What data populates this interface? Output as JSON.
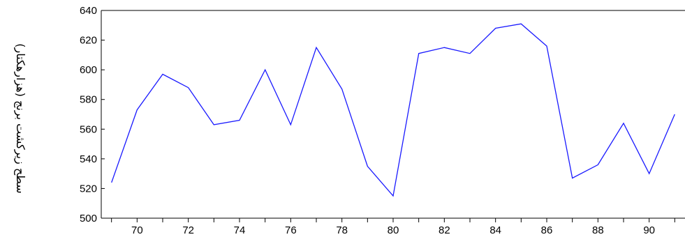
{
  "chart_data": {
    "type": "line",
    "title": "",
    "xlabel": "",
    "ylabel": "سطح زیرکشت برنج (هزارهکتار)",
    "x": [
      69,
      70,
      71,
      72,
      73,
      74,
      75,
      76,
      77,
      78,
      79,
      80,
      81,
      82,
      83,
      84,
      85,
      86,
      87,
      88,
      89,
      90,
      91
    ],
    "series": [
      {
        "values": [
          524,
          573,
          597,
          588,
          563,
          566,
          600,
          563,
          615,
          587,
          535,
          515,
          611,
          615,
          611,
          628,
          631,
          616,
          527,
          536,
          564,
          530,
          570
        ],
        "color": "#1a1aff"
      }
    ],
    "xlim": [
      68.6,
      91.4
    ],
    "ylim": [
      500,
      640
    ],
    "x_tick_labels": [
      "70",
      "72",
      "74",
      "76",
      "78",
      "80",
      "82",
      "84",
      "86",
      "88",
      "90"
    ],
    "x_tick_values": [
      70,
      72,
      74,
      76,
      78,
      80,
      82,
      84,
      86,
      88,
      90
    ],
    "y_tick_labels": [
      "500",
      "520",
      "540",
      "560",
      "580",
      "600",
      "620",
      "640"
    ],
    "y_tick_values": [
      500,
      520,
      540,
      560,
      580,
      600,
      620,
      640
    ],
    "grid": false,
    "legend": "none"
  }
}
